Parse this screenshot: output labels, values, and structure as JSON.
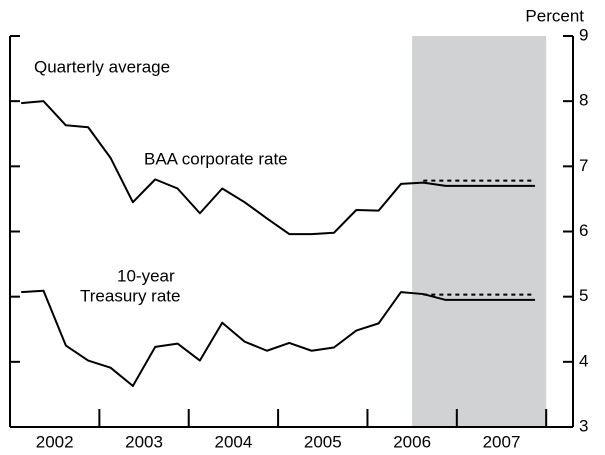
{
  "chart_data": {
    "type": "line",
    "annotations": [
      "Percent",
      "Quarterly average",
      "BAA corporate rate",
      "10-year",
      "Treasury rate"
    ],
    "x": [
      2002.125,
      2002.375,
      2002.625,
      2002.875,
      2003.125,
      2003.375,
      2003.625,
      2003.875,
      2004.125,
      2004.375,
      2004.625,
      2004.875,
      2005.125,
      2005.375,
      2005.625,
      2005.875,
      2006.125,
      2006.375,
      2006.625,
      2006.875,
      2007.125,
      2007.375,
      2007.625,
      2007.875
    ],
    "series": [
      {
        "color": "#000000",
        "dashed": false,
        "values": [
          7.97,
          8.0,
          7.63,
          7.6,
          7.13,
          6.45,
          6.8,
          6.66,
          6.28,
          6.66,
          6.45,
          6.2,
          5.96,
          5.96,
          5.98,
          6.33,
          6.32,
          6.73,
          6.75,
          6.7,
          6.7,
          6.7,
          6.7,
          6.7
        ]
      },
      {
        "color": "#000000",
        "dashed": true,
        "values": [
          null,
          null,
          null,
          null,
          null,
          null,
          null,
          null,
          null,
          null,
          null,
          null,
          null,
          null,
          null,
          null,
          null,
          null,
          6.75,
          6.75,
          6.75,
          6.75,
          6.75,
          6.75
        ]
      },
      {
        "color": "#000000",
        "dashed": false,
        "values": [
          5.07,
          5.09,
          4.25,
          4.02,
          3.91,
          3.63,
          4.23,
          4.28,
          4.02,
          4.6,
          4.31,
          4.17,
          4.29,
          4.17,
          4.22,
          4.48,
          4.59,
          5.07,
          5.04,
          4.95,
          4.95,
          4.95,
          4.95,
          4.95
        ]
      },
      {
        "color": "#000000",
        "dashed": true,
        "values": [
          null,
          null,
          null,
          null,
          null,
          null,
          null,
          null,
          null,
          null,
          null,
          null,
          null,
          null,
          null,
          null,
          null,
          null,
          5.0,
          5.0,
          5.0,
          5.0,
          5.0,
          5.0
        ]
      }
    ],
    "shaded_region": [
      2006.5,
      2008
    ],
    "shade_color": "#d1d2d4",
    "xlim": [
      2002,
      2008.3
    ],
    "xticks": [
      {
        "value": 2002.5,
        "label": "2002"
      },
      {
        "value": 2003.5,
        "label": "2003"
      },
      {
        "value": 2004.5,
        "label": "2004"
      },
      {
        "value": 2005.5,
        "label": "2005"
      },
      {
        "value": 2006.5,
        "label": "2006"
      },
      {
        "value": 2007.5,
        "label": "2007"
      }
    ],
    "ylim": [
      3,
      9
    ],
    "yticks": [
      3,
      4,
      5,
      6,
      7,
      8,
      9
    ]
  }
}
